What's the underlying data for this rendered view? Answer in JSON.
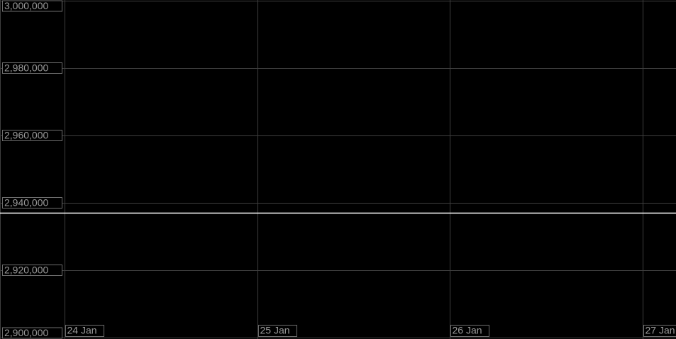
{
  "chart_data": {
    "type": "line",
    "x": [
      -0.335,
      3.173
    ],
    "series": [
      {
        "color": "#ffffff",
        "values": [
          2937000,
          2937000
        ]
      }
    ],
    "xlim": [
      -0.335,
      3.173
    ],
    "xticks": [
      {
        "value": 0,
        "label": "24 Jan"
      },
      {
        "value": 1,
        "label": "25 Jan"
      },
      {
        "value": 2,
        "label": "26 Jan"
      },
      {
        "value": 3,
        "label": "27 Jan"
      }
    ],
    "ylim": [
      2900000,
      3000000
    ],
    "yticks": [
      {
        "value": 2900000,
        "label": "2,900,000"
      },
      {
        "value": 2920000,
        "label": "2,920,000"
      },
      {
        "value": 2940000,
        "label": "2,940,000"
      },
      {
        "value": 2960000,
        "label": "2,960,000"
      },
      {
        "value": 2980000,
        "label": "2,980,000"
      },
      {
        "value": 3000000,
        "label": "3,000,000"
      }
    ],
    "grid": true
  }
}
